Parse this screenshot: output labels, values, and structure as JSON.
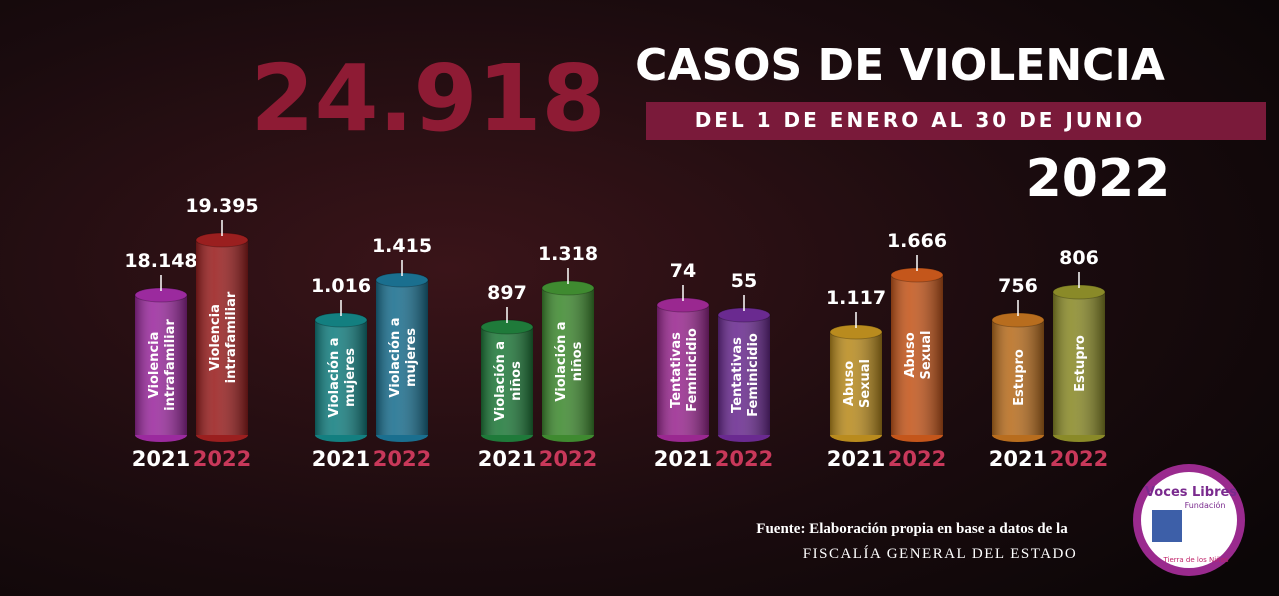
{
  "header": {
    "total": "24.918",
    "title": "CASOS DE VIOLENCIA",
    "period": "DEL 1 DE ENERO AL 30 DE JUNIO",
    "year": "2022"
  },
  "groups": [
    {
      "bars": [
        {
          "year": "2021",
          "value": "18.148",
          "label": [
            "Violencia",
            "intrafamiliar"
          ]
        },
        {
          "year": "2022",
          "value": "19.395",
          "label": [
            "Violencia",
            "intrafamiliar"
          ]
        }
      ]
    },
    {
      "bars": [
        {
          "year": "2021",
          "value": "1.016",
          "label": [
            "Violación a",
            "mujeres"
          ]
        },
        {
          "year": "2022",
          "value": "1.415",
          "label": [
            "Violación a",
            "mujeres"
          ]
        }
      ]
    },
    {
      "bars": [
        {
          "year": "2021",
          "value": "897",
          "label": [
            "Violación a",
            "niños"
          ]
        },
        {
          "year": "2022",
          "value": "1.318",
          "label": [
            "Violación a",
            "niños"
          ]
        }
      ]
    },
    {
      "bars": [
        {
          "year": "2021",
          "value": "74",
          "label": [
            "Tentativas",
            "Feminicidio"
          ]
        },
        {
          "year": "2022",
          "value": "55",
          "label": [
            "Tentativas",
            "Feminicidio"
          ]
        }
      ]
    },
    {
      "bars": [
        {
          "year": "2021",
          "value": "1.117",
          "label": [
            "Abuso",
            "Sexual"
          ]
        },
        {
          "year": "2022",
          "value": "1.666",
          "label": [
            "Abuso",
            "Sexual"
          ]
        }
      ]
    },
    {
      "bars": [
        {
          "year": "2021",
          "value": "756",
          "label": [
            "Estupro"
          ]
        },
        {
          "year": "2022",
          "value": "806",
          "label": [
            "Estupro"
          ]
        }
      ]
    }
  ],
  "source": {
    "line1": "Fuente:  Elaboración propia en base a datos de la",
    "line2": "FISCALÍA GENERAL DEL ESTADO"
  },
  "logo": {
    "name": "Voces Libres",
    "sub": "Fundación",
    "tagline": "Tierra de los Niños"
  }
}
